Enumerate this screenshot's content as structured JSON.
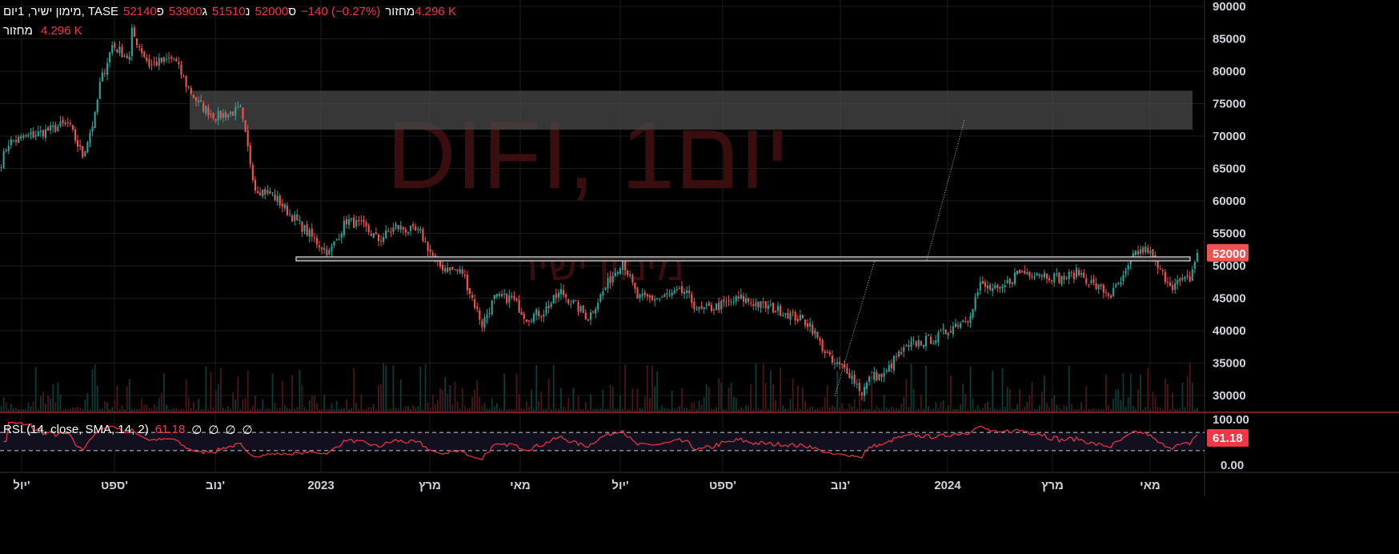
{
  "header": {
    "symbol": "TASE ,מימון ישיר, 1יום",
    "ohlc": [
      {
        "label": "פ",
        "value": "52140"
      },
      {
        "label": "ג",
        "value": "53900"
      },
      {
        "label": "נ",
        "value": "51510"
      },
      {
        "label": "ס",
        "value": "52000"
      }
    ],
    "change": "−140 (−0.27%)",
    "volume_label": "מחזור",
    "volume_value": "4.296 K"
  },
  "volume_legend": {
    "label": "מחזור",
    "value": "4.296 K"
  },
  "rsi_legend": {
    "title": "RSI (14, close, SMA, 14, 2)",
    "value": "61.18",
    "extras": [
      "∅",
      "∅",
      "∅",
      "∅"
    ]
  },
  "watermark": {
    "title": "DIFI, 1יום",
    "subtitle": "מימון ישיר"
  },
  "colors": {
    "up": "#26a69a",
    "down": "#ef5350",
    "rsi": "#f23645",
    "zone": "#4a4a4a"
  },
  "chart_data": {
    "type": "candlestick",
    "title": "DIFI, 1יום",
    "ylim": [
      28000,
      91000
    ],
    "y_ticks": [
      30000,
      35000,
      40000,
      45000,
      50000,
      55000,
      60000,
      65000,
      70000,
      75000,
      80000,
      85000,
      90000
    ],
    "last_price": "52000",
    "x_ticks": [
      "יול'",
      "ספט'",
      "נוב'",
      "2023",
      "מרץ",
      "מאי",
      "יול'",
      "ספט'",
      "נוב'",
      "2024",
      "מרץ",
      "מאי"
    ],
    "close_anchors": [
      [
        0,
        66000
      ],
      [
        3,
        69000
      ],
      [
        20,
        71000
      ],
      [
        27,
        72000
      ],
      [
        33,
        67000
      ],
      [
        38,
        73000
      ],
      [
        40,
        78000
      ],
      [
        45,
        84000
      ],
      [
        52,
        82000
      ],
      [
        53,
        86000
      ],
      [
        60,
        81000
      ],
      [
        70,
        82000
      ],
      [
        75,
        78000
      ],
      [
        80,
        75000
      ],
      [
        87,
        73000
      ],
      [
        97,
        74000
      ],
      [
        100,
        68000
      ],
      [
        103,
        62000
      ],
      [
        110,
        61000
      ],
      [
        117,
        58000
      ],
      [
        127,
        54000
      ],
      [
        133,
        52000
      ],
      [
        140,
        57000
      ],
      [
        147,
        56000
      ],
      [
        153,
        54000
      ],
      [
        160,
        56000
      ],
      [
        170,
        55000
      ],
      [
        177,
        50000
      ],
      [
        187,
        49000
      ],
      [
        195,
        41000
      ],
      [
        200,
        45000
      ],
      [
        207,
        45000
      ],
      [
        213,
        42000
      ],
      [
        220,
        43000
      ],
      [
        227,
        46000
      ],
      [
        238,
        42000
      ],
      [
        247,
        48000
      ],
      [
        252,
        51000
      ],
      [
        258,
        45000
      ],
      [
        267,
        45000
      ],
      [
        277,
        46000
      ],
      [
        283,
        43000
      ],
      [
        293,
        44000
      ],
      [
        300,
        45000
      ],
      [
        307,
        44000
      ],
      [
        317,
        43000
      ],
      [
        328,
        41000
      ],
      [
        332,
        38000
      ],
      [
        337,
        35000
      ],
      [
        343,
        34000
      ],
      [
        349,
        30500
      ],
      [
        353,
        33000
      ],
      [
        358,
        33000
      ],
      [
        363,
        36000
      ],
      [
        370,
        38000
      ],
      [
        380,
        39000
      ],
      [
        387,
        41000
      ],
      [
        392,
        42000
      ],
      [
        397,
        47000
      ],
      [
        405,
        46000
      ],
      [
        412,
        49000
      ],
      [
        420,
        49000
      ],
      [
        430,
        48000
      ],
      [
        437,
        49000
      ],
      [
        443,
        47000
      ],
      [
        450,
        45500
      ],
      [
        455,
        48000
      ],
      [
        460,
        52000
      ],
      [
        465,
        52500
      ],
      [
        470,
        49000
      ],
      [
        475,
        47000
      ],
      [
        482,
        48000
      ],
      [
        485,
        52000
      ]
    ],
    "zone": [
      71000,
      77000
    ],
    "level": 51000,
    "rsi": {
      "ylim": [
        0,
        100
      ],
      "bands": [
        70,
        30
      ],
      "ticks": [
        "100.00",
        "0.00"
      ],
      "last": "61.18"
    }
  }
}
